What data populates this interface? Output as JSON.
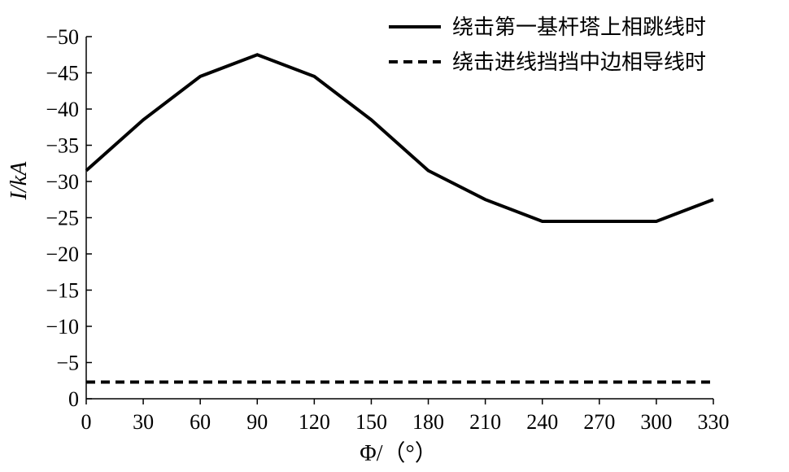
{
  "chart_data": {
    "type": "line",
    "xlabel": "Φ/（°）",
    "ylabel": "I/kA",
    "xlim": [
      0,
      330
    ],
    "ylim": [
      0,
      -50
    ],
    "x_ticks": [
      "0",
      "30",
      "60",
      "90",
      "120",
      "150",
      "180",
      "210",
      "240",
      "270",
      "300",
      "330"
    ],
    "y_ticks": [
      "0",
      "−5",
      "−10",
      "−15",
      "−20",
      "−25",
      "−30",
      "−35",
      "−40",
      "−45",
      "−50"
    ],
    "x": [
      0,
      30,
      60,
      90,
      120,
      150,
      180,
      210,
      240,
      270,
      300,
      330
    ],
    "series": [
      {
        "name": "绕击第一基杆塔上相跳线时",
        "style": "solid",
        "values": [
          -31.5,
          -38.5,
          -44.5,
          -47.5,
          -44.5,
          -38.5,
          -31.5,
          -27.5,
          -24.5,
          -24.5,
          -24.5,
          -27.5
        ]
      },
      {
        "name": "绕击进线挡挡中边相导线时",
        "style": "dashed",
        "values": [
          -2.3,
          -2.3,
          -2.3,
          -2.3,
          -2.3,
          -2.3,
          -2.3,
          -2.3,
          -2.3,
          -2.3,
          -2.3,
          -2.3
        ]
      }
    ],
    "legend_position": "top-right",
    "grid": false,
    "color": "#000000"
  }
}
